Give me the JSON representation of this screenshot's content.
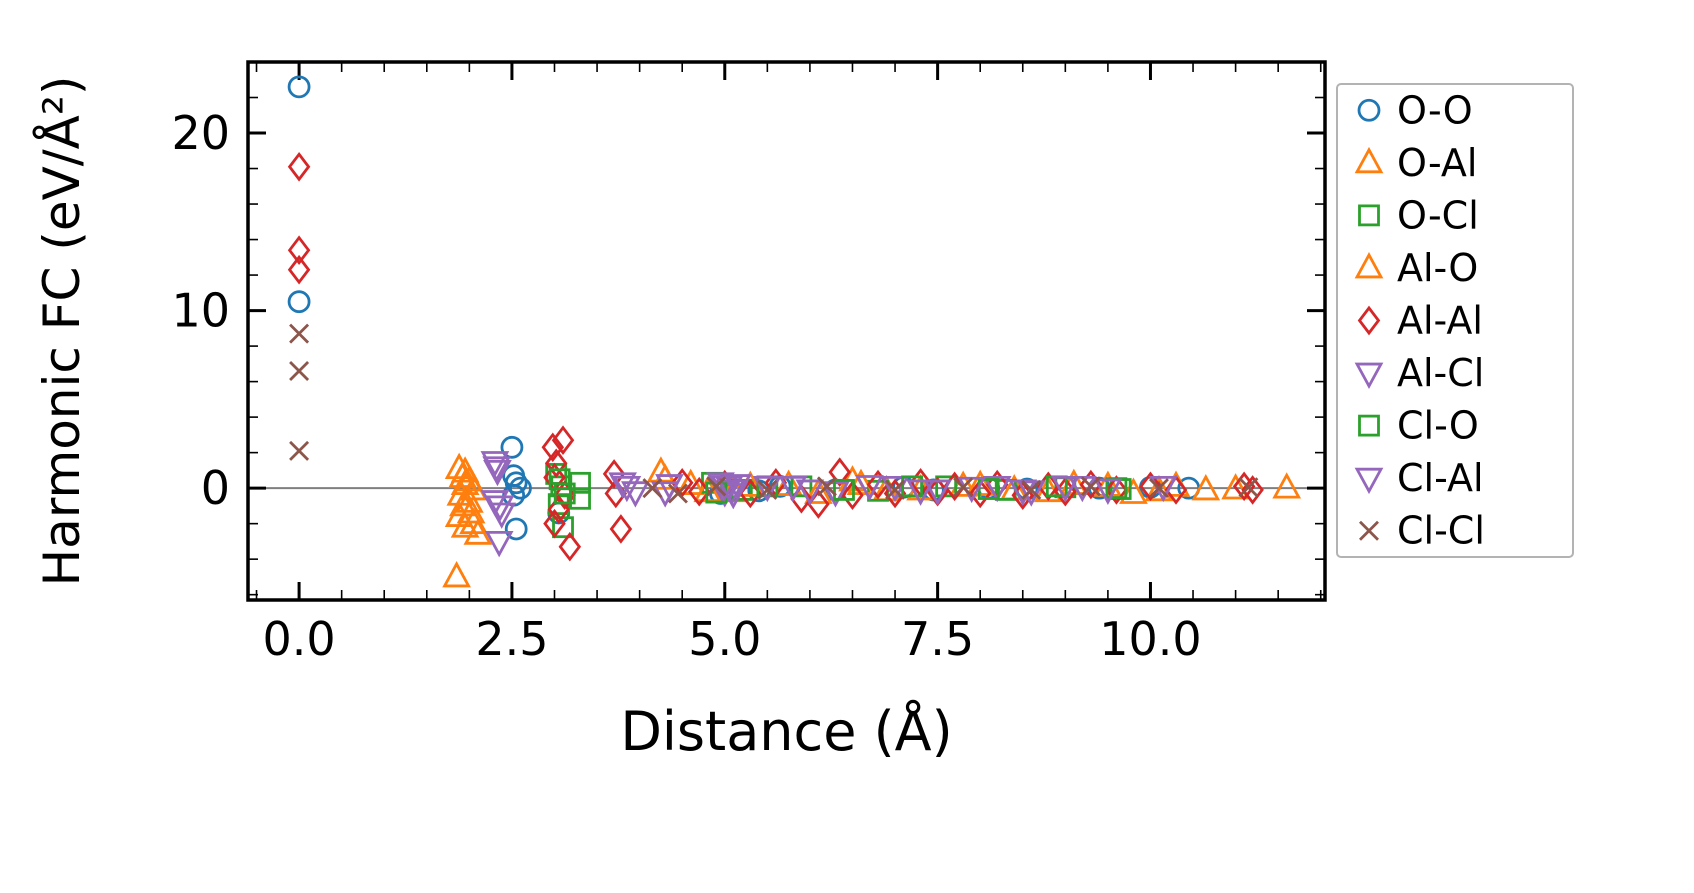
{
  "figure": {
    "background": "#ffffff"
  },
  "chart_data": {
    "type": "scatter",
    "title": "",
    "xlabel": "Distance (Å)",
    "ylabel": "Harmonic FC (eV/Å²)",
    "xlim": [
      -0.6,
      12.05
    ],
    "ylim": [
      -6.3,
      24.0
    ],
    "grid": false,
    "legend_position": "outside-right",
    "zero_line": {
      "y": 0,
      "color": "#7f7f7f"
    },
    "x_ticks": {
      "values": [
        0,
        2.5,
        5,
        7.5,
        10
      ],
      "labels": [
        "0.0",
        "2.5",
        "5.0",
        "7.5",
        "10.0"
      ],
      "minor_step": 0.5
    },
    "y_ticks": {
      "values": [
        0,
        10,
        20
      ],
      "labels": [
        "0",
        "10",
        "20"
      ],
      "minor_step": 2
    },
    "series": [
      {
        "name": "O-O",
        "label": "O-O",
        "marker": "circle",
        "color": "#1f77b4",
        "points": [
          [
            0,
            22.6
          ],
          [
            0,
            10.5
          ],
          [
            2.5,
            2.3
          ],
          [
            2.52,
            0.7
          ],
          [
            2.55,
            0.3
          ],
          [
            2.6,
            0.0
          ],
          [
            2.52,
            -0.4
          ],
          [
            2.55,
            -2.3
          ],
          [
            3.05,
            -1.4
          ],
          [
            4.95,
            -0.3
          ],
          [
            5.4,
            -0.15
          ],
          [
            5.65,
            0.1
          ],
          [
            6.3,
            -0.1
          ],
          [
            7.1,
            0.05
          ],
          [
            7.45,
            -0.1
          ],
          [
            8.1,
            0.0
          ],
          [
            8.55,
            -0.05
          ],
          [
            9.4,
            0.0
          ],
          [
            10.0,
            0.05
          ],
          [
            10.45,
            0.0
          ]
        ]
      },
      {
        "name": "O-Al",
        "label": "O-Al",
        "marker": "triangle-up",
        "color": "#ff7f0e",
        "points": [
          [
            1.88,
            1.1
          ],
          [
            1.92,
            0.6
          ],
          [
            1.95,
            0.2
          ],
          [
            1.9,
            -0.4
          ],
          [
            1.93,
            -1.0
          ],
          [
            1.88,
            -1.6
          ],
          [
            1.95,
            -2.2
          ],
          [
            1.85,
            -5.0
          ],
          [
            4.25,
            0.9
          ],
          [
            4.6,
            0.2
          ],
          [
            5.1,
            -0.2
          ],
          [
            5.75,
            0.15
          ],
          [
            6.5,
            0.4
          ],
          [
            6.9,
            -0.15
          ],
          [
            7.8,
            0.1
          ],
          [
            8.4,
            -0.1
          ],
          [
            9.1,
            0.2
          ],
          [
            9.8,
            -0.3
          ],
          [
            10.3,
            0.1
          ],
          [
            10.65,
            -0.1
          ],
          [
            11.6,
            0.0
          ]
        ]
      },
      {
        "name": "O-Cl",
        "label": "O-Cl",
        "marker": "square",
        "color": "#2ca02c",
        "points": [
          [
            3.02,
            0.8
          ],
          [
            3.08,
            0.1
          ],
          [
            3.05,
            -0.9
          ],
          [
            3.1,
            -2.2
          ],
          [
            3.3,
            0.3
          ],
          [
            4.85,
            0.3
          ],
          [
            5.2,
            -0.1
          ],
          [
            5.9,
            0.1
          ],
          [
            6.8,
            -0.15
          ],
          [
            7.6,
            0.1
          ],
          [
            8.3,
            -0.1
          ],
          [
            9.0,
            0.05
          ],
          [
            9.65,
            -0.05
          ]
        ]
      },
      {
        "name": "Al-O",
        "label": "Al-O",
        "marker": "triangle-up",
        "color": "#ff7f0e",
        "points": [
          [
            1.95,
            0.9
          ],
          [
            2.0,
            0.4
          ],
          [
            2.05,
            -0.1
          ],
          [
            2.0,
            -0.8
          ],
          [
            2.02,
            -1.4
          ],
          [
            2.05,
            -2.0
          ],
          [
            2.1,
            -2.6
          ],
          [
            4.3,
            0.5
          ],
          [
            4.8,
            -0.2
          ],
          [
            5.3,
            0.1
          ],
          [
            6.1,
            -0.3
          ],
          [
            6.6,
            0.2
          ],
          [
            7.3,
            -0.1
          ],
          [
            8.0,
            0.15
          ],
          [
            8.8,
            -0.2
          ],
          [
            9.5,
            0.1
          ],
          [
            10.1,
            -0.15
          ],
          [
            11.0,
            -0.05
          ]
        ]
      },
      {
        "name": "Al-Al",
        "label": "Al-Al",
        "marker": "diamond",
        "color": "#d62728",
        "points": [
          [
            0,
            18.1
          ],
          [
            0,
            13.4
          ],
          [
            0,
            12.3
          ],
          [
            2.98,
            2.3
          ],
          [
            3.1,
            2.7
          ],
          [
            3.02,
            1.4
          ],
          [
            3.0,
            0.6
          ],
          [
            3.12,
            -0.4
          ],
          [
            3.05,
            -1.2
          ],
          [
            3.0,
            -2.0
          ],
          [
            3.18,
            -3.3
          ],
          [
            3.7,
            0.8
          ],
          [
            3.72,
            -0.3
          ],
          [
            3.78,
            -2.3
          ],
          [
            4.5,
            0.3
          ],
          [
            4.7,
            -0.2
          ],
          [
            5.0,
            0.2
          ],
          [
            5.3,
            -0.3
          ],
          [
            5.6,
            0.3
          ],
          [
            5.9,
            -0.6
          ],
          [
            6.1,
            -0.9
          ],
          [
            6.35,
            0.9
          ],
          [
            6.5,
            -0.4
          ],
          [
            6.8,
            0.2
          ],
          [
            7.0,
            -0.3
          ],
          [
            7.3,
            0.3
          ],
          [
            7.5,
            -0.2
          ],
          [
            7.7,
            0.1
          ],
          [
            8.0,
            -0.3
          ],
          [
            8.2,
            0.2
          ],
          [
            8.5,
            -0.4
          ],
          [
            8.8,
            0.1
          ],
          [
            9.0,
            -0.2
          ],
          [
            9.3,
            0.2
          ],
          [
            9.6,
            -0.1
          ],
          [
            10.0,
            0.1
          ],
          [
            10.3,
            -0.1
          ],
          [
            11.1,
            0.1
          ],
          [
            11.2,
            -0.1
          ]
        ]
      },
      {
        "name": "Al-Cl",
        "label": "Al-Cl",
        "marker": "triangle-down",
        "color": "#9467bd",
        "points": [
          [
            2.3,
            1.5
          ],
          [
            2.33,
            1.0
          ],
          [
            2.3,
            -0.7
          ],
          [
            2.38,
            -1.4
          ],
          [
            2.35,
            -3.0
          ],
          [
            3.8,
            0.3
          ],
          [
            3.95,
            -0.2
          ],
          [
            4.35,
            0.2
          ],
          [
            4.95,
            0.3
          ],
          [
            5.0,
            -0.2
          ],
          [
            5.05,
            0.1
          ],
          [
            5.1,
            -0.3
          ],
          [
            5.15,
            0.2
          ],
          [
            5.8,
            0.1
          ],
          [
            6.3,
            -0.2
          ],
          [
            7.0,
            0.1
          ],
          [
            7.5,
            -0.1
          ],
          [
            8.2,
            0.1
          ],
          [
            8.6,
            -0.15
          ],
          [
            9.2,
            0.1
          ],
          [
            10.15,
            0.1
          ]
        ]
      },
      {
        "name": "Cl-O",
        "label": "Cl-O",
        "marker": "square",
        "color": "#2ca02c",
        "points": [
          [
            3.06,
            0.5
          ],
          [
            3.12,
            -0.3
          ],
          [
            3.3,
            -0.6
          ],
          [
            4.9,
            -0.25
          ],
          [
            5.5,
            0.1
          ],
          [
            6.4,
            -0.1
          ],
          [
            7.2,
            0.1
          ],
          [
            8.1,
            -0.05
          ],
          [
            8.9,
            0.1
          ],
          [
            9.6,
            0.0
          ]
        ]
      },
      {
        "name": "Cl-Al",
        "label": "Cl-Al",
        "marker": "triangle-down",
        "color": "#9467bd",
        "points": [
          [
            2.32,
            1.2
          ],
          [
            2.36,
            -1.0
          ],
          [
            3.85,
            0.1
          ],
          [
            4.3,
            -0.2
          ],
          [
            5.0,
            0.15
          ],
          [
            5.08,
            -0.1
          ],
          [
            5.5,
            0.1
          ],
          [
            6.0,
            -0.1
          ],
          [
            6.7,
            0.15
          ],
          [
            7.3,
            -0.1
          ],
          [
            7.9,
            0.05
          ],
          [
            8.5,
            -0.1
          ],
          [
            9.0,
            0.1
          ],
          [
            9.5,
            -0.05
          ]
        ]
      },
      {
        "name": "Cl-Cl",
        "label": "Cl-Cl",
        "marker": "x",
        "color": "#8c564b",
        "points": [
          [
            0,
            8.7
          ],
          [
            0,
            6.6
          ],
          [
            0,
            2.1
          ],
          [
            4.15,
            0.0
          ],
          [
            4.45,
            -0.3
          ],
          [
            4.9,
            0.1
          ],
          [
            5.5,
            -0.1
          ],
          [
            6.2,
            0.1
          ],
          [
            7.0,
            -0.1
          ],
          [
            7.8,
            0.05
          ],
          [
            8.6,
            -0.1
          ],
          [
            9.3,
            0.1
          ],
          [
            10.1,
            0.0
          ],
          [
            11.15,
            0.05
          ]
        ]
      }
    ]
  }
}
